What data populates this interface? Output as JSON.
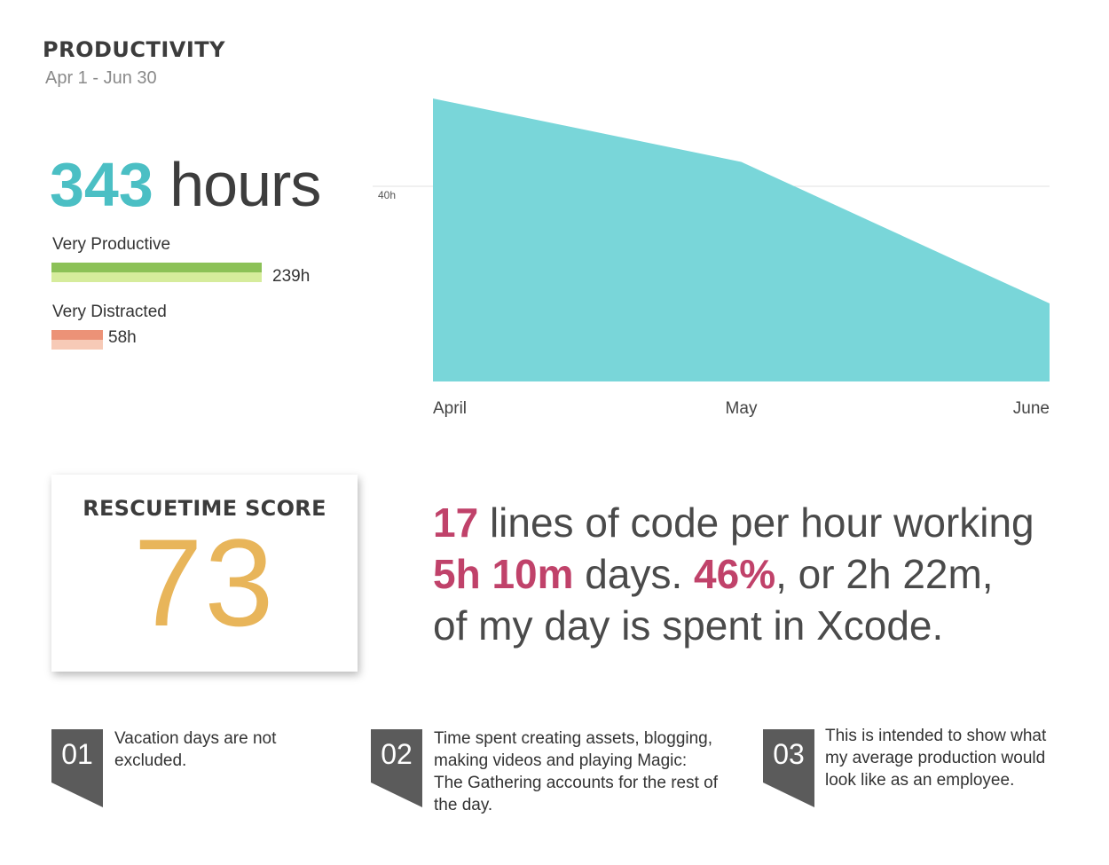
{
  "header": {
    "title": "PRODUCTIVITY",
    "date_range": "Apr 1 - Jun 30"
  },
  "total": {
    "number": "343",
    "unit": " hours"
  },
  "categories": [
    {
      "label": "Very Productive",
      "value": "239h",
      "hours": 239,
      "color_top": "#8cc157",
      "color_bottom": "#d6ec9c"
    },
    {
      "label": "Very Distracted",
      "value": "58h",
      "hours": 58,
      "color_top": "#ec9277",
      "color_bottom": "#f7cab7"
    }
  ],
  "chart_data": {
    "type": "area",
    "x": [
      "April",
      "May",
      "June"
    ],
    "series": [
      {
        "values": [
          58,
          45,
          16
        ]
      }
    ],
    "reference_line": {
      "value": 40,
      "label": "40h"
    },
    "ylim": [
      0,
      60
    ],
    "color": "#79d6d9",
    "grid": false
  },
  "score": {
    "title": "RESCUETIME SCORE",
    "value": "73",
    "color": "#e8b55a"
  },
  "statement": {
    "line1_highlight": "17",
    "line1_rest": " lines of code per hour working",
    "line2_highlight": "5h 10m",
    "line2_mid": " days. ",
    "line2_highlight2": "46%",
    "line2_rest": ", or 2h 22m,",
    "line3": "of my day is spent in Xcode.",
    "highlight_color": "#c0426a"
  },
  "notes": [
    {
      "number": "01",
      "text": "Vacation days are not excluded."
    },
    {
      "number": "02",
      "text": "Time spent creating assets, blogging, making videos and playing Magic: The Gathering accounts for the rest of the day."
    },
    {
      "number": "03",
      "text": "This is intended to show what my average production would look like as an employee."
    }
  ],
  "badge_color": "#5b5b5b"
}
